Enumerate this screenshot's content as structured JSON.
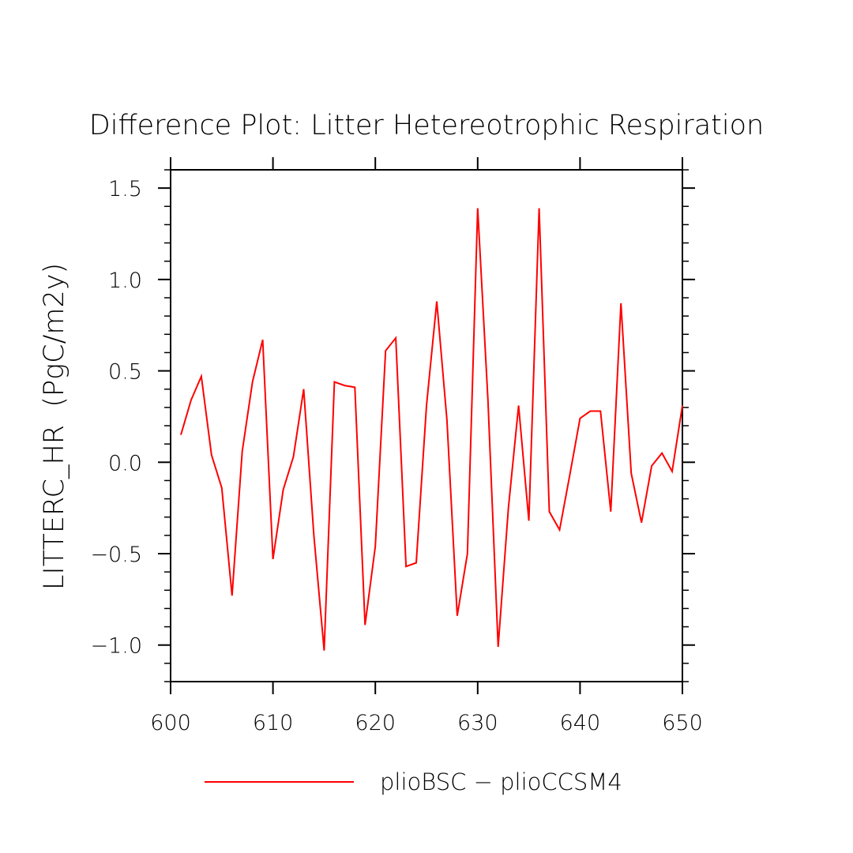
{
  "chart_data": {
    "type": "line",
    "title": "Difference Plot: Litter Hetereotrophic Respiration",
    "xlabel": "",
    "ylabel": "LITTERC_HR  (PgC/m2y)",
    "xlim": [
      600,
      650
    ],
    "ylim": [
      -1.2,
      1.6
    ],
    "x_ticks": [
      600,
      610,
      620,
      630,
      640,
      650
    ],
    "x_tick_labels": [
      "600",
      "610",
      "620",
      "630",
      "640",
      "650"
    ],
    "y_ticks": [
      -1.0,
      -0.5,
      0.0,
      0.5,
      1.0,
      1.5
    ],
    "y_tick_labels": [
      "−1.0",
      "−0.5",
      "0.0",
      "0.5",
      "1.0",
      "1.5"
    ],
    "grid": false,
    "legend_position": "bottom",
    "series": [
      {
        "name": "plioBSC − plioCCSM4",
        "color": "#ff0000",
        "x": [
          601,
          602,
          603,
          604,
          605,
          606,
          607,
          608,
          609,
          610,
          611,
          612,
          613,
          614,
          615,
          616,
          617,
          618,
          619,
          620,
          621,
          622,
          623,
          624,
          625,
          626,
          627,
          628,
          629,
          630,
          631,
          632,
          633,
          634,
          635,
          636,
          637,
          638,
          639,
          640,
          641,
          642,
          643,
          644,
          645,
          646,
          647,
          648,
          649,
          650
        ],
        "y": [
          0.15,
          0.34,
          0.47,
          0.04,
          -0.14,
          -0.73,
          0.06,
          0.44,
          0.67,
          -0.53,
          -0.15,
          0.03,
          0.4,
          -0.4,
          -1.03,
          0.44,
          0.42,
          0.41,
          -0.89,
          -0.46,
          0.61,
          0.68,
          -0.57,
          -0.55,
          0.31,
          0.88,
          0.23,
          -0.84,
          -0.5,
          1.39,
          0.34,
          -1.01,
          -0.25,
          0.31,
          -0.32,
          1.39,
          -0.27,
          -0.37,
          -0.07,
          0.24,
          0.28,
          0.28,
          -0.27,
          0.87,
          -0.06,
          -0.33,
          -0.02,
          0.05,
          -0.05,
          0.31
        ]
      }
    ]
  }
}
